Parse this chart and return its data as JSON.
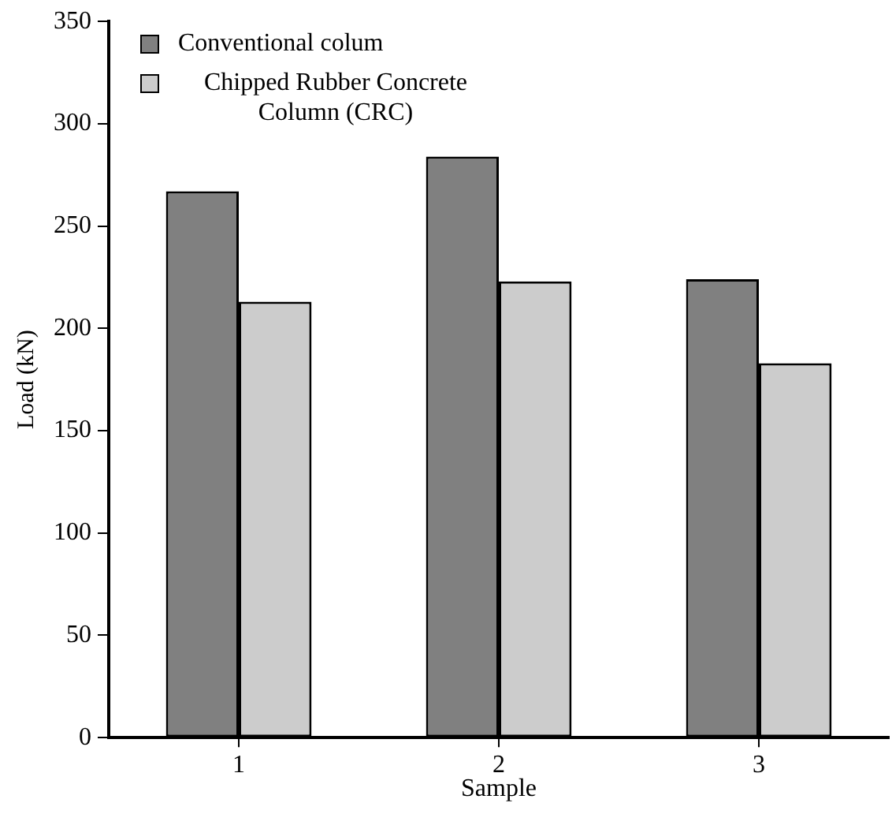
{
  "chart_data": {
    "type": "bar",
    "xlabel": "Sample",
    "ylabel": "Load (kN)",
    "categories": [
      "1",
      "2",
      "3"
    ],
    "series": [
      {
        "name": "Conventional colum",
        "color": "#808080",
        "values": [
          267,
          284,
          224
        ]
      },
      {
        "name": "Chipped Rubber Concrete Column (CRC)",
        "color": "#cccccc",
        "values": [
          213,
          223,
          183
        ]
      }
    ],
    "ylim": [
      0,
      350
    ],
    "yticks": [
      0,
      50,
      100,
      150,
      200,
      250,
      300,
      350
    ],
    "grid": false,
    "legend": "top left"
  }
}
